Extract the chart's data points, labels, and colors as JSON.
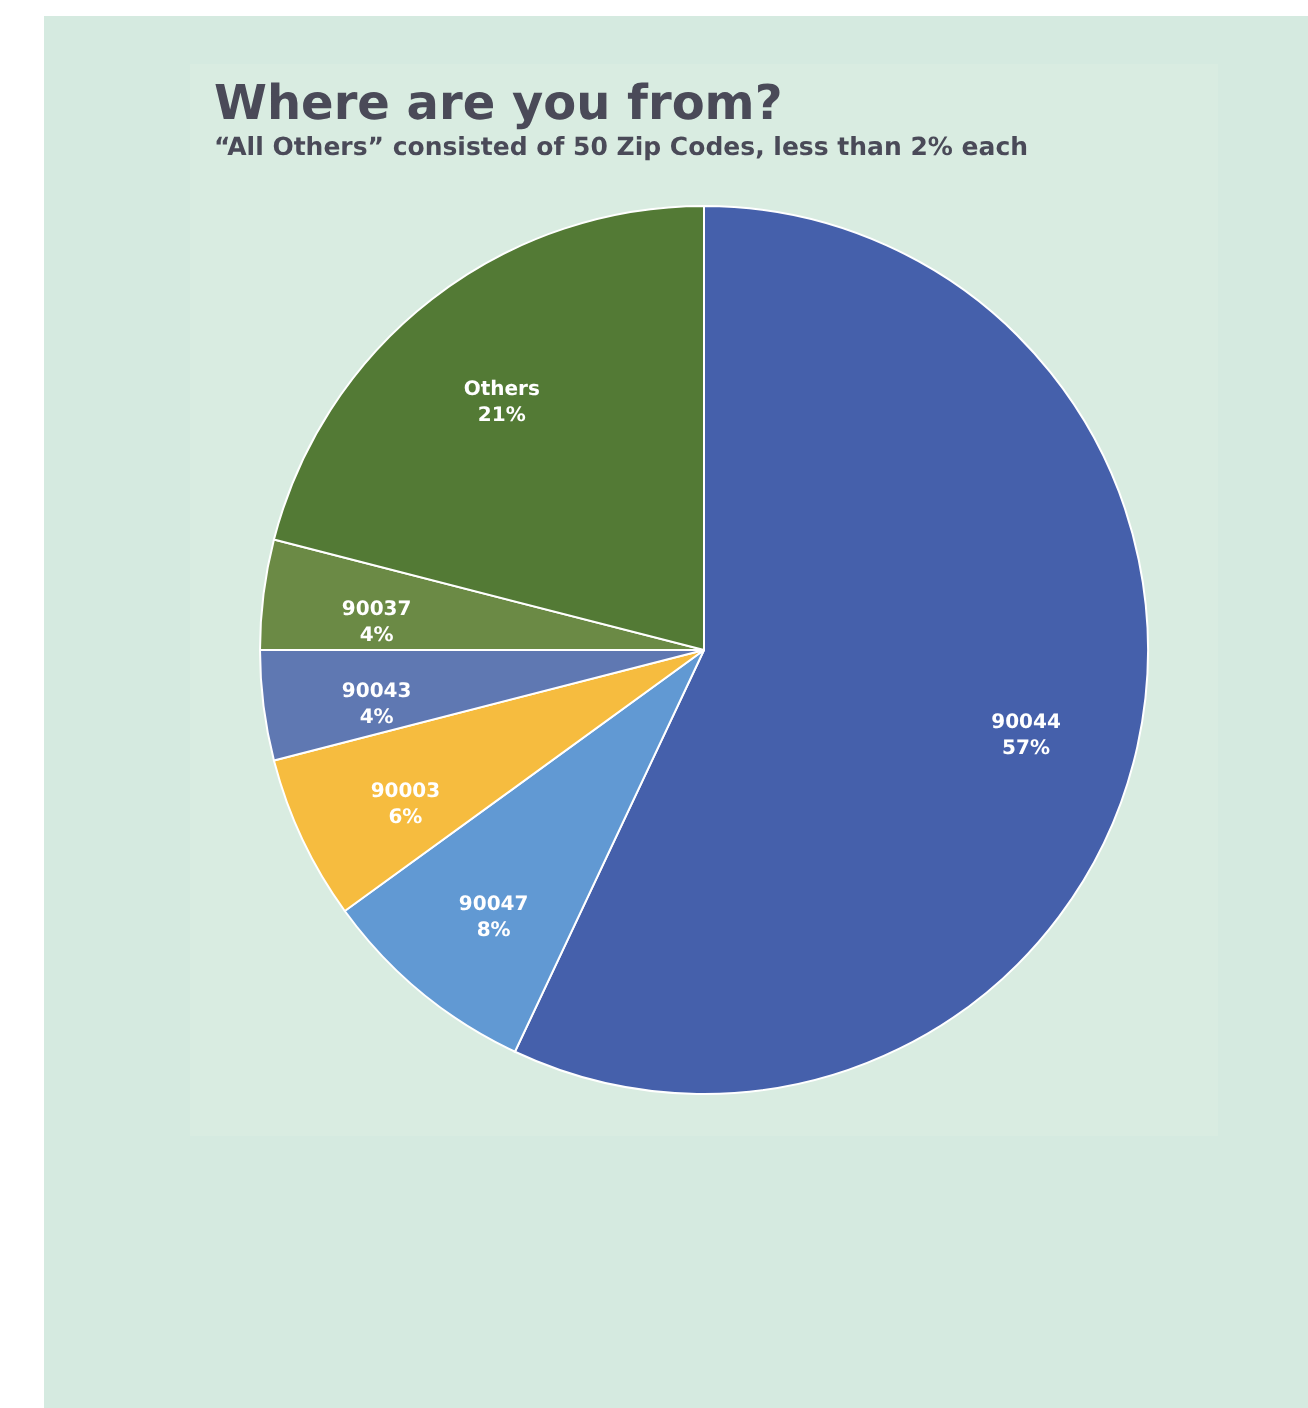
{
  "chart_data": {
    "type": "pie",
    "title": "Where are you from?",
    "subtitle": "“All Others” consisted of 50 Zip Codes, less than 2% each",
    "categories": [
      "90044",
      "90047",
      "90003",
      "90043",
      "90037",
      "Others"
    ],
    "values": [
      57,
      8,
      6,
      4,
      4,
      21
    ],
    "value_labels": [
      "57%",
      "8%",
      "6%",
      "4%",
      "4%",
      "21%"
    ],
    "colors": [
      "#4560ab",
      "#6199d3",
      "#f6bc3f",
      "#5f78b2",
      "#6b8a45",
      "#537a35"
    ]
  }
}
